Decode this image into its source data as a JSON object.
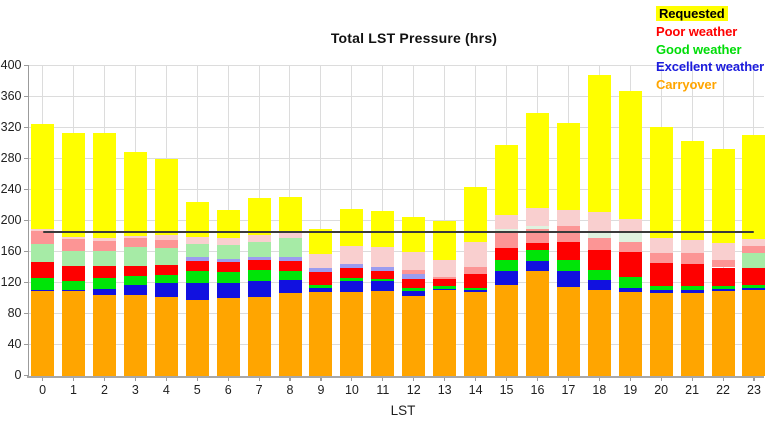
{
  "chart_data": {
    "type": "bar",
    "stacked": true,
    "title": "Total LST Pressure (hrs)",
    "xlabel": "LST",
    "ylabel": "",
    "ylim": [
      0,
      400
    ],
    "ytick_step": 40,
    "yticks": [
      0,
      40,
      80,
      120,
      160,
      200,
      240,
      280,
      320,
      360,
      400
    ],
    "categories": [
      0,
      1,
      2,
      3,
      4,
      5,
      6,
      7,
      8,
      9,
      10,
      11,
      12,
      13,
      14,
      15,
      16,
      17,
      18,
      19,
      20,
      21,
      22,
      23
    ],
    "grid": true,
    "legend_position": "top-right",
    "series_order_note": "segments listed bottom-to-top per bar; values are stack heights in hours",
    "palette": {
      "carryover": "#ffa500",
      "excellent": "#1111e0",
      "good": "#00e408",
      "poor": "#fe0000",
      "excellent_light": "#9c9cef",
      "good_light": "#a6eba6",
      "good_pale": "#dff2df",
      "poor_light": "#fc9595",
      "poor_pale": "#f9cfcf",
      "requested": "#ffff00"
    },
    "reference_line": {
      "value": 185,
      "from_category": 0,
      "to_category": 23,
      "color": "#3a3a3a"
    },
    "bars": [
      {
        "lst": 0,
        "total": 325,
        "segments": [
          [
            "carryover",
            110
          ],
          [
            "excellent",
            1
          ],
          [
            "good",
            15
          ],
          [
            "poor",
            21
          ],
          [
            "good_light",
            23
          ],
          [
            "poor_light",
            16.5
          ],
          [
            "poor_pale",
            2.5
          ],
          [
            "requested",
            136
          ]
        ]
      },
      {
        "lst": 1,
        "total": 313,
        "segments": [
          [
            "carryover",
            109
          ],
          [
            "excellent",
            1.5
          ],
          [
            "good",
            11.5
          ],
          [
            "poor",
            19
          ],
          [
            "good_light",
            20
          ],
          [
            "poor_light",
            15
          ],
          [
            "poor_pale",
            3
          ],
          [
            "requested",
            134
          ]
        ]
      },
      {
        "lst": 2,
        "total": 313,
        "segments": [
          [
            "carryover",
            104
          ],
          [
            "excellent",
            8
          ],
          [
            "good",
            14
          ],
          [
            "poor",
            15
          ],
          [
            "good_light",
            20
          ],
          [
            "poor_light",
            13
          ],
          [
            "poor_pale",
            4
          ],
          [
            "requested",
            135
          ]
        ]
      },
      {
        "lst": 3,
        "total": 289,
        "segments": [
          [
            "carryover",
            104
          ],
          [
            "excellent",
            13
          ],
          [
            "good",
            12
          ],
          [
            "poor",
            13
          ],
          [
            "good_light",
            24
          ],
          [
            "poor_light",
            11
          ],
          [
            "poor_pale",
            3.5
          ],
          [
            "requested",
            108.5
          ]
        ]
      },
      {
        "lst": 4,
        "total": 280,
        "segments": [
          [
            "carryover",
            101
          ],
          [
            "excellent",
            19
          ],
          [
            "good",
            10
          ],
          [
            "poor",
            13
          ],
          [
            "good_light",
            22
          ],
          [
            "poor_light",
            10.5
          ],
          [
            "poor_pale",
            5.5
          ],
          [
            "requested",
            99
          ]
        ]
      },
      {
        "lst": 5,
        "total": 224,
        "segments": [
          [
            "carryover",
            98
          ],
          [
            "excellent",
            22
          ],
          [
            "good",
            15
          ],
          [
            "poor",
            13.5
          ],
          [
            "excellent_light",
            4
          ],
          [
            "good_light",
            18
          ],
          [
            "poor_pale",
            8.5
          ],
          [
            "requested",
            45
          ]
        ]
      },
      {
        "lst": 6,
        "total": 214,
        "segments": [
          [
            "carryover",
            100
          ],
          [
            "excellent",
            19
          ],
          [
            "good",
            14.5
          ],
          [
            "poor",
            12.8
          ],
          [
            "excellent_light",
            3.8
          ],
          [
            "good_light",
            18.5
          ],
          [
            "poor_pale",
            9.1
          ],
          [
            "requested",
            36.3
          ]
        ]
      },
      {
        "lst": 7,
        "total": 229,
        "segments": [
          [
            "carryover",
            102
          ],
          [
            "excellent",
            20
          ],
          [
            "good",
            14.6
          ],
          [
            "poor",
            12.4
          ],
          [
            "excellent_light",
            3.8
          ],
          [
            "good_light",
            19.9
          ],
          [
            "poor_pale",
            9
          ],
          [
            "requested",
            47.3
          ]
        ]
      },
      {
        "lst": 8,
        "total": 231,
        "segments": [
          [
            "carryover",
            107
          ],
          [
            "excellent",
            17
          ],
          [
            "good",
            10.5
          ],
          [
            "poor",
            13.5
          ],
          [
            "excellent_light",
            4.5
          ],
          [
            "good_light",
            24.5
          ],
          [
            "poor_pale",
            7
          ],
          [
            "requested",
            47
          ]
        ]
      },
      {
        "lst": 9,
        "total": 189,
        "segments": [
          [
            "carryover",
            108
          ],
          [
            "excellent",
            5
          ],
          [
            "good",
            3.5
          ],
          [
            "poor",
            17.5
          ],
          [
            "excellent_light",
            5
          ],
          [
            "poor_pale",
            18
          ],
          [
            "requested",
            32
          ]
        ]
      },
      {
        "lst": 10,
        "total": 215,
        "segments": [
          [
            "carryover",
            108.5
          ],
          [
            "excellent",
            14
          ],
          [
            "good",
            3
          ],
          [
            "poor",
            13.4
          ],
          [
            "excellent_light",
            5.8
          ],
          [
            "poor_pale",
            22.8
          ],
          [
            "requested",
            47.5
          ]
        ]
      },
      {
        "lst": 11,
        "total": 212,
        "segments": [
          [
            "carryover",
            109
          ],
          [
            "excellent",
            13
          ],
          [
            "good",
            3
          ],
          [
            "poor",
            10
          ],
          [
            "excellent_light",
            5.5
          ],
          [
            "poor_pale",
            25.5
          ],
          [
            "requested",
            46
          ]
        ]
      },
      {
        "lst": 12,
        "total": 205,
        "segments": [
          [
            "carryover",
            103
          ],
          [
            "excellent",
            6.5
          ],
          [
            "good",
            4
          ],
          [
            "poor",
            11.5
          ],
          [
            "excellent_light",
            6.5
          ],
          [
            "poor_light",
            5
          ],
          [
            "poor_pale",
            23.5
          ],
          [
            "requested",
            45
          ]
        ]
      },
      {
        "lst": 13,
        "total": 200,
        "segments": [
          [
            "carryover",
            110
          ],
          [
            "excellent",
            2.5
          ],
          [
            "good",
            3
          ],
          [
            "poor",
            9.5
          ],
          [
            "poor_light",
            2.5
          ],
          [
            "poor_pale",
            22
          ],
          [
            "requested",
            50.5
          ]
        ]
      },
      {
        "lst": 14,
        "total": 244,
        "segments": [
          [
            "carryover",
            107.5
          ],
          [
            "excellent",
            3
          ],
          [
            "good",
            2.8
          ],
          [
            "poor",
            17.7
          ],
          [
            "poor_light",
            9.8
          ],
          [
            "poor_pale",
            32
          ],
          [
            "requested",
            71.2
          ]
        ]
      },
      {
        "lst": 15,
        "total": 297,
        "segments": [
          [
            "carryover",
            117
          ],
          [
            "excellent",
            18
          ],
          [
            "good",
            13.7
          ],
          [
            "poor",
            15.7
          ],
          [
            "poor_light",
            22.5
          ],
          [
            "good_pale",
            2
          ],
          [
            "poor_pale",
            19
          ],
          [
            "requested",
            89.1
          ]
        ]
      },
      {
        "lst": 16,
        "total": 339,
        "segments": [
          [
            "carryover",
            135
          ],
          [
            "excellent",
            12.7
          ],
          [
            "good",
            14.9
          ],
          [
            "poor",
            8.6
          ],
          [
            "poor_light",
            18.2
          ],
          [
            "good_pale",
            3.9
          ],
          [
            "poor_pale",
            23.2
          ],
          [
            "requested",
            122.5
          ]
        ]
      },
      {
        "lst": 17,
        "total": 326,
        "segments": [
          [
            "carryover",
            114.5
          ],
          [
            "excellent",
            20.4
          ],
          [
            "good",
            15
          ],
          [
            "poor",
            22.4
          ],
          [
            "poor_light",
            20.9
          ],
          [
            "poor_pale",
            20.5
          ],
          [
            "requested",
            112.3
          ]
        ]
      },
      {
        "lst": 18,
        "total": 388,
        "segments": [
          [
            "carryover",
            111
          ],
          [
            "excellent",
            12
          ],
          [
            "good",
            14
          ],
          [
            "poor",
            25.5
          ],
          [
            "poor_light",
            15
          ],
          [
            "good_pale",
            8.6
          ],
          [
            "poor_pale",
            24.5
          ],
          [
            "requested",
            177.4
          ]
        ]
      },
      {
        "lst": 19,
        "total": 367,
        "segments": [
          [
            "carryover",
            108
          ],
          [
            "excellent",
            5.3
          ],
          [
            "good",
            13.8
          ],
          [
            "poor",
            32.2
          ],
          [
            "poor_light",
            13
          ],
          [
            "good_pale",
            13.7
          ],
          [
            "poor_pale",
            16.7
          ],
          [
            "requested",
            164.3
          ]
        ]
      },
      {
        "lst": 20,
        "total": 321,
        "segments": [
          [
            "carryover",
            106.5
          ],
          [
            "excellent",
            4.7
          ],
          [
            "good",
            4.8
          ],
          [
            "poor",
            29.9
          ],
          [
            "poor_light",
            12.6
          ],
          [
            "poor_pale",
            18.6
          ],
          [
            "requested",
            143.9
          ]
        ]
      },
      {
        "lst": 21,
        "total": 303,
        "segments": [
          [
            "carryover",
            106.5
          ],
          [
            "excellent",
            4
          ],
          [
            "good",
            4.7
          ],
          [
            "poor",
            29.5
          ],
          [
            "poor_light",
            13
          ],
          [
            "poor_pale",
            17.4
          ],
          [
            "requested",
            127.9
          ]
        ]
      },
      {
        "lst": 22,
        "total": 292,
        "segments": [
          [
            "carryover",
            109
          ],
          [
            "excellent",
            3.4
          ],
          [
            "good",
            3.6
          ],
          [
            "poor",
            23.6
          ],
          [
            "poor_light",
            10.3
          ],
          [
            "poor_pale",
            21.3
          ],
          [
            "requested",
            120.8
          ]
        ]
      },
      {
        "lst": 23,
        "total": 310,
        "segments": [
          [
            "carryover",
            110
          ],
          [
            "excellent",
            3.2
          ],
          [
            "good",
            3.8
          ],
          [
            "poor",
            22.5
          ],
          [
            "good_light",
            18.9
          ],
          [
            "poor_light",
            8.6
          ],
          [
            "poor_pale",
            9.2
          ],
          [
            "requested",
            133.8
          ]
        ]
      }
    ]
  },
  "legend": {
    "items": [
      {
        "label": "Requested",
        "series": "requested",
        "text_color": "#000000",
        "highlight": "#ffff00"
      },
      {
        "label": "Poor weather",
        "series": "poor",
        "text_color": "#fe0000"
      },
      {
        "label": "Good weather",
        "series": "good",
        "text_color": "#00dd08"
      },
      {
        "label": "Excellent weather",
        "series": "excellent",
        "text_color": "#1c1cdd"
      },
      {
        "label": "Carryover",
        "series": "carryover",
        "text_color": "#ffa500"
      }
    ]
  },
  "titles": {
    "chart": "Total LST Pressure (hrs)",
    "x_axis": "LST"
  }
}
